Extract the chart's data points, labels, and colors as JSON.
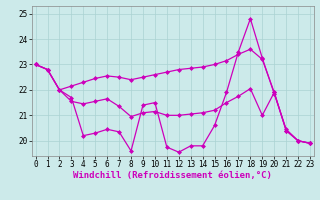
{
  "xlabel": "Windchill (Refroidissement éolien,°C)",
  "xlim": [
    -0.3,
    23.3
  ],
  "ylim": [
    19.4,
    25.3
  ],
  "yticks": [
    20,
    21,
    22,
    23,
    24,
    25
  ],
  "xticks": [
    0,
    1,
    2,
    3,
    4,
    5,
    6,
    7,
    8,
    9,
    10,
    11,
    12,
    13,
    14,
    15,
    16,
    17,
    18,
    19,
    20,
    21,
    22,
    23
  ],
  "bg_color": "#cceaea",
  "line_color": "#cc00bb",
  "grid_color": "#aad2d2",
  "series1": [
    23.0,
    22.8,
    22.0,
    22.15,
    22.3,
    22.45,
    22.55,
    22.5,
    22.4,
    22.5,
    22.6,
    22.7,
    22.8,
    22.85,
    22.9,
    23.0,
    23.15,
    23.4,
    23.6,
    23.2,
    21.9,
    20.4,
    20.0,
    19.9
  ],
  "series2": [
    23.0,
    22.8,
    22.0,
    21.55,
    21.45,
    21.55,
    21.65,
    21.35,
    20.95,
    21.1,
    21.15,
    21.0,
    21.0,
    21.05,
    21.1,
    21.2,
    21.5,
    21.75,
    22.05,
    21.0,
    21.9,
    20.4,
    20.0,
    19.9
  ],
  "series3": [
    23.0,
    22.8,
    22.0,
    21.7,
    20.2,
    20.3,
    20.45,
    20.35,
    19.6,
    21.4,
    21.5,
    19.75,
    19.55,
    19.8,
    19.8,
    20.6,
    21.9,
    23.5,
    24.8,
    23.25,
    21.85,
    20.45,
    20.0,
    19.9
  ],
  "marker": "D",
  "markersize": 2.0,
  "linewidth": 0.9,
  "tick_fontsize": 5.5,
  "xlabel_fontsize": 6.5
}
